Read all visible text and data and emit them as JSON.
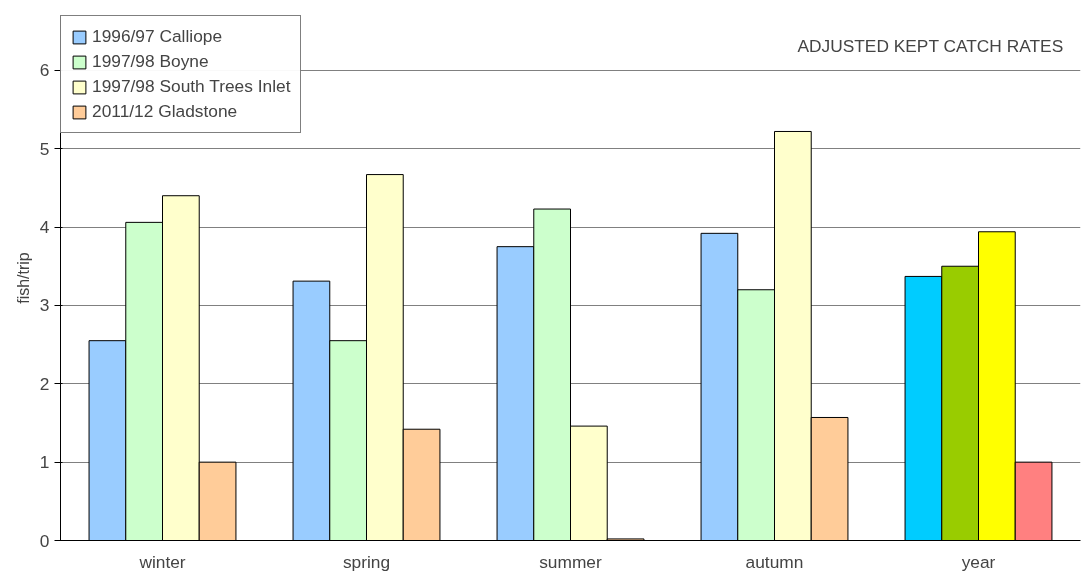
{
  "chart_data": {
    "type": "bar",
    "ylabel": "fish/trip",
    "annotations": [
      "ADJUSTED KEPT CATCH RATES"
    ],
    "categories": [
      "winter",
      "spring",
      "summer",
      "autumn",
      "year"
    ],
    "series": [
      {
        "name": "1996/97 Calliope",
        "colors": [
          "#99ccff",
          "#99ccff",
          "#99ccff",
          "#99ccff",
          "#00ccff"
        ],
        "values": [
          2.55,
          3.31,
          3.75,
          3.92,
          3.37
        ]
      },
      {
        "name": "1997/98 Boyne",
        "colors": [
          "#ccffcc",
          "#ccffcc",
          "#ccffcc",
          "#ccffcc",
          "#99cc00"
        ],
        "values": [
          4.06,
          2.55,
          4.23,
          3.2,
          3.5
        ]
      },
      {
        "name": "1997/98 South Trees Inlet",
        "colors": [
          "#ffffcc",
          "#ffffcc",
          "#ffffcc",
          "#ffffcc",
          "#ffff00"
        ],
        "values": [
          4.4,
          4.67,
          1.46,
          5.22,
          3.94
        ]
      },
      {
        "name": "2011/12 Gladstone",
        "colors": [
          "#ffcc99",
          "#ffcc99",
          "#ffcc99",
          "#ffcc99",
          "#ff8080"
        ],
        "values": [
          1.0,
          1.42,
          0.02,
          1.57,
          1.0
        ]
      }
    ],
    "ylim": [
      0,
      6.7
    ],
    "yticks": [
      0,
      1,
      2,
      3,
      4,
      5,
      6
    ],
    "grid": "y",
    "legend": "top left"
  }
}
